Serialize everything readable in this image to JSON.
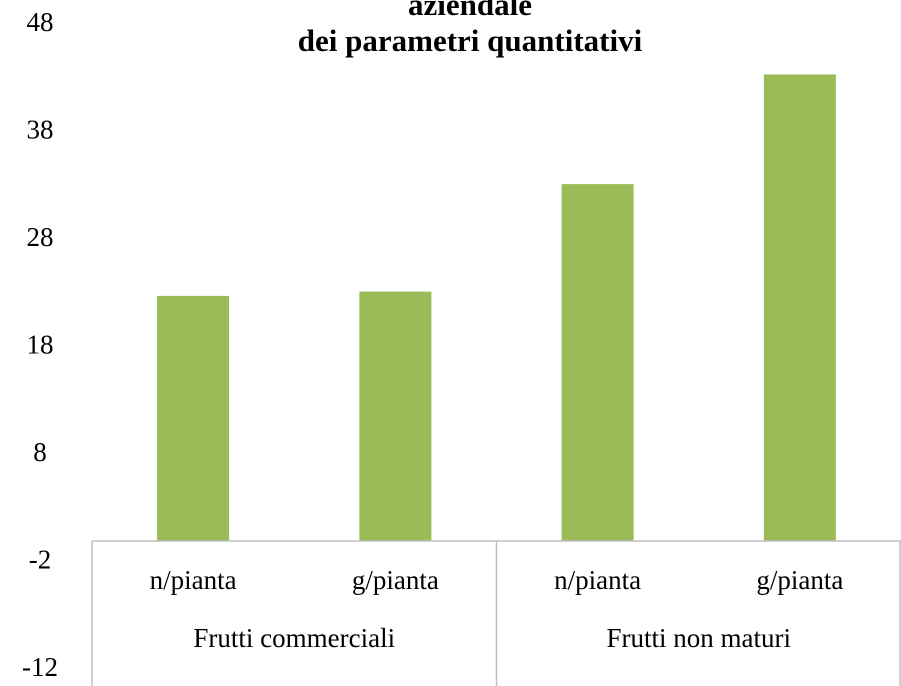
{
  "chart_data": {
    "type": "bar",
    "title_lines": [
      "aziendale",
      "dei parametri quantitativi"
    ],
    "categories": [
      "n/pianta",
      "g/pianta",
      "n/pianta",
      "g/pianta"
    ],
    "groups": [
      "Frutti commerciali",
      "Frutti  non maturi"
    ],
    "values": [
      22.8,
      23.2,
      33.2,
      43.4
    ],
    "color": "#9bbb59",
    "ylim": [
      -12,
      48
    ],
    "yticks": [
      -12,
      -2,
      8,
      18,
      28,
      38,
      48
    ]
  }
}
